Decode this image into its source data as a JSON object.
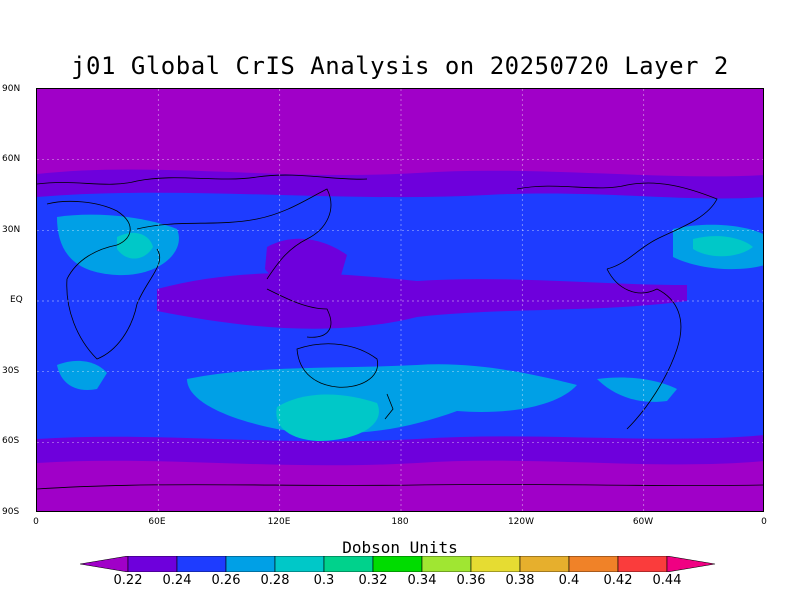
{
  "title": "j01 Global CrIS Analysis on 20250720 Layer 2",
  "colorbar": {
    "units_label": "Dobson Units",
    "ticks": [
      "0.22",
      "0.24",
      "0.26",
      "0.28",
      "0.3",
      "0.32",
      "0.34",
      "0.36",
      "0.38",
      "0.4",
      "0.42",
      "0.44"
    ],
    "colors": [
      "#a000c8",
      "#6e00dc",
      "#1e3cff",
      "#00a0e6",
      "#00c8c8",
      "#00d28c",
      "#00dc00",
      "#a0e632",
      "#e6dc32",
      "#e6af2d",
      "#f08228",
      "#fa3c3c",
      "#f00082"
    ]
  },
  "axes": {
    "lat_labels": [
      "90N",
      "60N",
      "30N",
      "EQ",
      "30S",
      "60S",
      "90S"
    ],
    "lon_labels": [
      "0",
      "60E",
      "120E",
      "180",
      "120W",
      "60W",
      "0"
    ]
  }
}
